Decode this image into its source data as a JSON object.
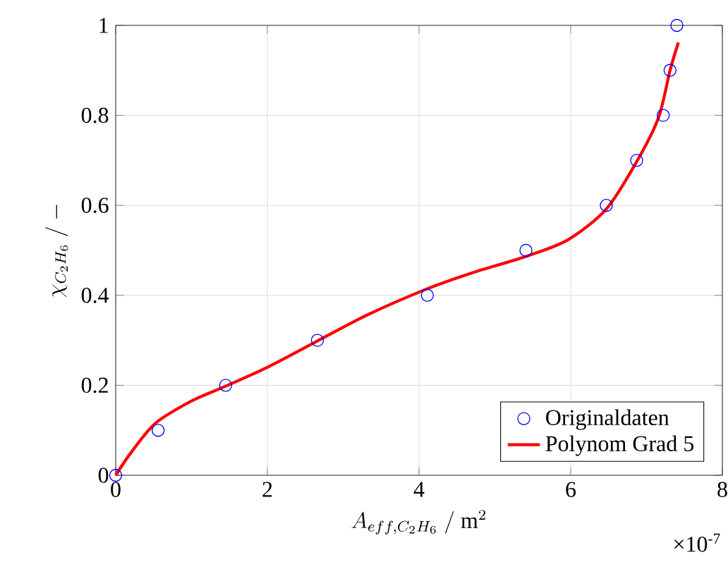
{
  "chart_data": {
    "type": "scatter",
    "xlabel": "A_{eff,C_2H_6}\\ /\\ \\mathrm{m}^2",
    "ylabel": "\\chi_{C_2H_6}\\ /\\ \\mathrm{-}",
    "annotations": [
      "×10$^{-7}$"
    ],
    "xlim": [
      0,
      8
    ],
    "xticks": [
      0,
      2,
      4,
      6,
      8
    ],
    "ylim": [
      0,
      1
    ],
    "yticks": [
      0,
      0.2,
      0.4,
      0.6,
      0.8,
      1
    ],
    "grid": true,
    "legend": "bottom right",
    "series": [
      {
        "name": "Originaldaten",
        "marker": "circle",
        "color": "#0000ff",
        "x": [
          0,
          0.56,
          1.45,
          2.66,
          4.11,
          5.41,
          6.47,
          6.87,
          7.22,
          7.31,
          7.4
        ],
        "values": [
          0,
          0.1,
          0.2,
          0.3,
          0.4,
          0.5,
          0.6,
          0.7,
          0.8,
          0.9,
          1
        ]
      },
      {
        "name": "Polynom Grad 5",
        "type": "line",
        "marker": "none",
        "color": "#ff0000",
        "x": [
          0,
          0.2,
          0.52,
          1,
          1.45,
          2,
          2.62,
          3.3,
          4.1,
          4.7,
          5.4,
          5.96,
          6.47,
          6.88,
          7.16,
          7.31,
          7.42
        ],
        "values": [
          0,
          0.05,
          0.115,
          0.165,
          0.198,
          0.24,
          0.295,
          0.355,
          0.414,
          0.45,
          0.486,
          0.523,
          0.592,
          0.7,
          0.796,
          0.9,
          0.962
        ]
      }
    ]
  }
}
